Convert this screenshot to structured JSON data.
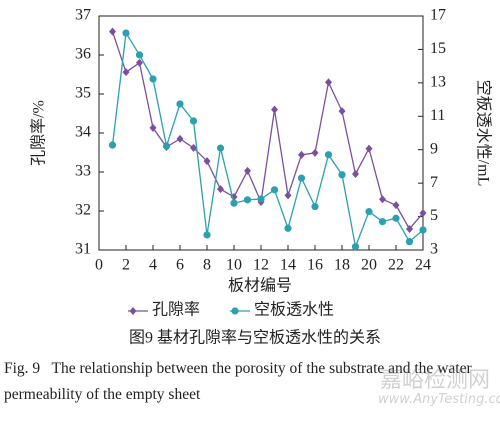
{
  "chart_data": {
    "type": "line",
    "x": [
      1,
      2,
      3,
      4,
      5,
      6,
      7,
      8,
      9,
      10,
      11,
      12,
      13,
      14,
      15,
      16,
      17,
      18,
      19,
      20,
      21,
      22,
      23,
      24
    ],
    "xlim": [
      0,
      24
    ],
    "xticks": [
      0,
      2,
      4,
      6,
      8,
      10,
      12,
      14,
      16,
      18,
      20,
      22,
      24
    ],
    "ylim": [
      31,
      37
    ],
    "yticks": [
      31,
      32,
      33,
      34,
      35,
      36,
      37
    ],
    "y2lim": [
      3,
      17
    ],
    "y2ticks": [
      3,
      5,
      7,
      9,
      11,
      13,
      15,
      17
    ],
    "xlabel": "板材编号",
    "ylabel": "孔隙率/%",
    "y2label": "空板透水性/mL",
    "series": [
      {
        "name": "孔隙率",
        "color": "#7b4f9e",
        "marker": "diamond",
        "values": [
          36.6,
          35.56,
          35.8,
          34.13,
          33.64,
          33.85,
          33.62,
          33.28,
          32.56,
          32.36,
          33.03,
          32.23,
          34.6,
          32.4,
          33.44,
          33.49,
          35.3,
          34.56,
          32.95,
          33.6,
          32.3,
          32.15,
          31.54,
          31.95
        ]
      },
      {
        "name": "空板透水性",
        "color": "#2aa0b0",
        "marker": "circle",
        "axis": "y2",
        "values": [
          9.28,
          15.98,
          14.67,
          13.23,
          9.22,
          11.74,
          10.72,
          3.9,
          9.1,
          5.8,
          6.0,
          6.05,
          6.6,
          4.3,
          7.3,
          5.6,
          8.7,
          7.5,
          3.2,
          5.3,
          4.7,
          4.9,
          3.5,
          4.2
        ]
      }
    ],
    "caption": "图9   基材孔隙率与空板透水性的关系",
    "caption_en": "Fig. 9   The relationship between the porosity of the substrate and the water permeability of the empty sheet",
    "watermark": [
      "嘉峪检测网",
      "www.AnyTesting.com"
    ]
  }
}
